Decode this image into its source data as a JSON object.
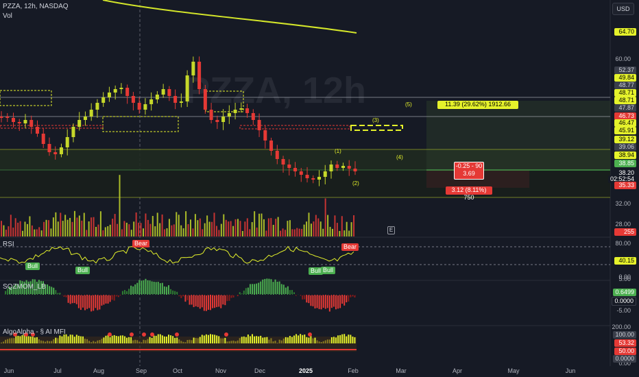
{
  "header": {
    "symbol_line": "PZZA, 12h, NASDAQ",
    "vol_label": "Vol",
    "currency": "USD"
  },
  "watermark": "PZZA, 12h",
  "price_axis": {
    "ticks": [
      "60.00",
      "32.00",
      "28.00"
    ],
    "labels": [
      {
        "text": "64.70",
        "bg": "#e5f22b",
        "fg": "#000000"
      },
      {
        "text": "52.37",
        "bg": "#3a3e4a",
        "fg": "#d1d4dc"
      },
      {
        "text": "49.84",
        "bg": "#e5f22b",
        "fg": "#000000"
      },
      {
        "text": "48.77",
        "bg": "#3a3e4a",
        "fg": "#d1d4dc"
      },
      {
        "text": "48.71",
        "bg": "#e5f22b",
        "fg": "#000000"
      },
      {
        "text": "48.71",
        "bg": "#e5f22b",
        "fg": "#000000"
      },
      {
        "text": "47.87",
        "bg": "#3a3e4a",
        "fg": "#d1d4dc"
      },
      {
        "text": "46.73",
        "bg": "#e53935",
        "fg": "#ffffff"
      },
      {
        "text": "46.47",
        "bg": "#e5f22b",
        "fg": "#000000"
      },
      {
        "text": "45.91",
        "bg": "#e5f22b",
        "fg": "#000000"
      },
      {
        "text": "39.12",
        "bg": "#e5f22b",
        "fg": "#000000"
      },
      {
        "text": "39.06",
        "bg": "#3a3e4a",
        "fg": "#d1d4dc"
      },
      {
        "text": "38.94",
        "bg": "#e5f22b",
        "fg": "#000000"
      },
      {
        "text": "38.85",
        "bg": "#4caf50",
        "fg": "#ffffff"
      },
      {
        "text": "38.20",
        "bg": "#161a25",
        "fg": "#ffffff"
      },
      {
        "text": "02:52:54",
        "bg": "#161a25",
        "fg": "#ffffff"
      },
      {
        "text": "35.33",
        "bg": "#e53935",
        "fg": "#ffffff"
      },
      {
        "text": "255",
        "bg": "#e53935",
        "fg": "#ffffff"
      }
    ]
  },
  "elliott": {
    "w1": "(1)",
    "w2": "(2)",
    "w3": "(3)",
    "w4": "(4)",
    "w5": "(5)"
  },
  "trade_boxes": {
    "target": "11.39 (29.62%) 1912.66",
    "entry_line1": "-0.25 - 90",
    "entry_line2": "3.69",
    "stop": "3.12 (8.11%) 750"
  },
  "rsi": {
    "title": "RSI",
    "bear": "Bear",
    "bull": "Bull",
    "ticks": [
      "80.00",
      "0.00"
    ],
    "value": "40.15"
  },
  "sqz": {
    "title": "SQZMOM_LB",
    "ticks": [
      "5.00",
      "-5.00"
    ],
    "value1": "0.6499",
    "value2": "0.0000"
  },
  "mfi": {
    "title": "AlgoAlpha - § AI MFI",
    "ticks": [
      "200.00",
      "0.00"
    ],
    "v1": "100.00",
    "v2": "53.32",
    "v3": "50.00",
    "v4": "0.0000"
  },
  "events": {
    "earnings": "E"
  },
  "x_axis": [
    "Jun",
    "Jul",
    "Aug",
    "Sep",
    "Oct",
    "Nov",
    "Dec",
    "2025",
    "Feb",
    "Mar",
    "Apr",
    "May",
    "Jun"
  ],
  "colors": {
    "up": "#c6d82a",
    "down": "#e53935",
    "ma": "#d4e62a",
    "bg": "#161a25"
  }
}
